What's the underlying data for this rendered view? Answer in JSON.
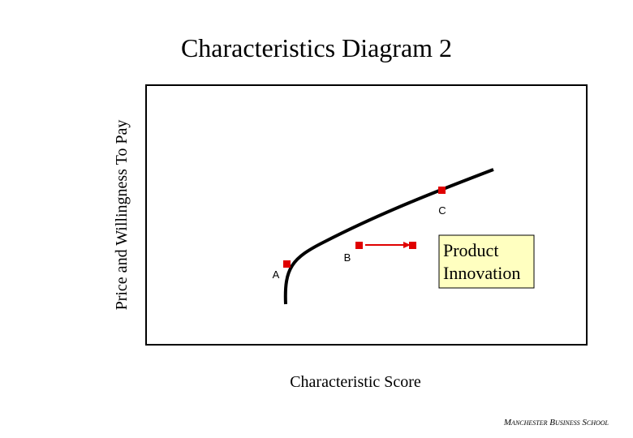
{
  "title": "Characteristics Diagram 2",
  "y_axis_label": "Price and Willingness To Pay",
  "x_axis_label": "Characteristic Score",
  "points": [
    {
      "label": "A"
    },
    {
      "label": "B"
    },
    {
      "label": "C"
    }
  ],
  "callout": {
    "lines": [
      "Product",
      "Innovation"
    ]
  },
  "footer": "Manchester Business School"
}
